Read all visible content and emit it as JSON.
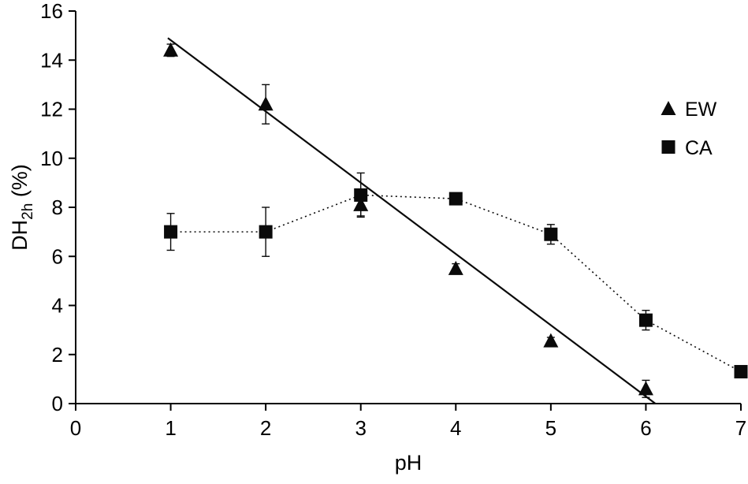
{
  "chart_data": {
    "type": "scatter",
    "title": "",
    "xlabel": "pH",
    "ylabel": {
      "main": "DH",
      "sub": "2h",
      "unit": " (%)"
    },
    "xlim": [
      0,
      7
    ],
    "ylim": [
      0,
      16
    ],
    "x_ticks": [
      0,
      1,
      2,
      3,
      4,
      5,
      6,
      7
    ],
    "y_ticks": [
      0,
      2,
      4,
      6,
      8,
      10,
      12,
      14,
      16
    ],
    "grid": false,
    "legend_position": "right-inside",
    "series": [
      {
        "name": "EW",
        "marker": "triangle",
        "line": "none",
        "x": [
          1,
          2,
          3,
          4,
          5,
          6
        ],
        "y": [
          14.4,
          12.2,
          8.1,
          5.5,
          2.55,
          0.6
        ],
        "yerr": [
          0.25,
          0.8,
          0.45,
          0.2,
          0.15,
          0.35
        ],
        "trendline": {
          "style": "solid",
          "x1": 0.97,
          "y1": 14.9,
          "x2": 6.1,
          "y2": 0
        }
      },
      {
        "name": "CA",
        "marker": "square",
        "line": "dotted",
        "x": [
          1,
          2,
          3,
          4,
          5,
          6,
          7
        ],
        "y": [
          7.0,
          7.0,
          8.5,
          8.35,
          6.9,
          3.4,
          1.3
        ],
        "yerr": [
          0.75,
          1.0,
          0.9,
          0.15,
          0.4,
          0.4,
          0.15
        ]
      }
    ],
    "colors": {
      "marker": "#0a0a0a",
      "line": "#0a0a0a",
      "axis": "#000000",
      "background": "#ffffff"
    }
  }
}
